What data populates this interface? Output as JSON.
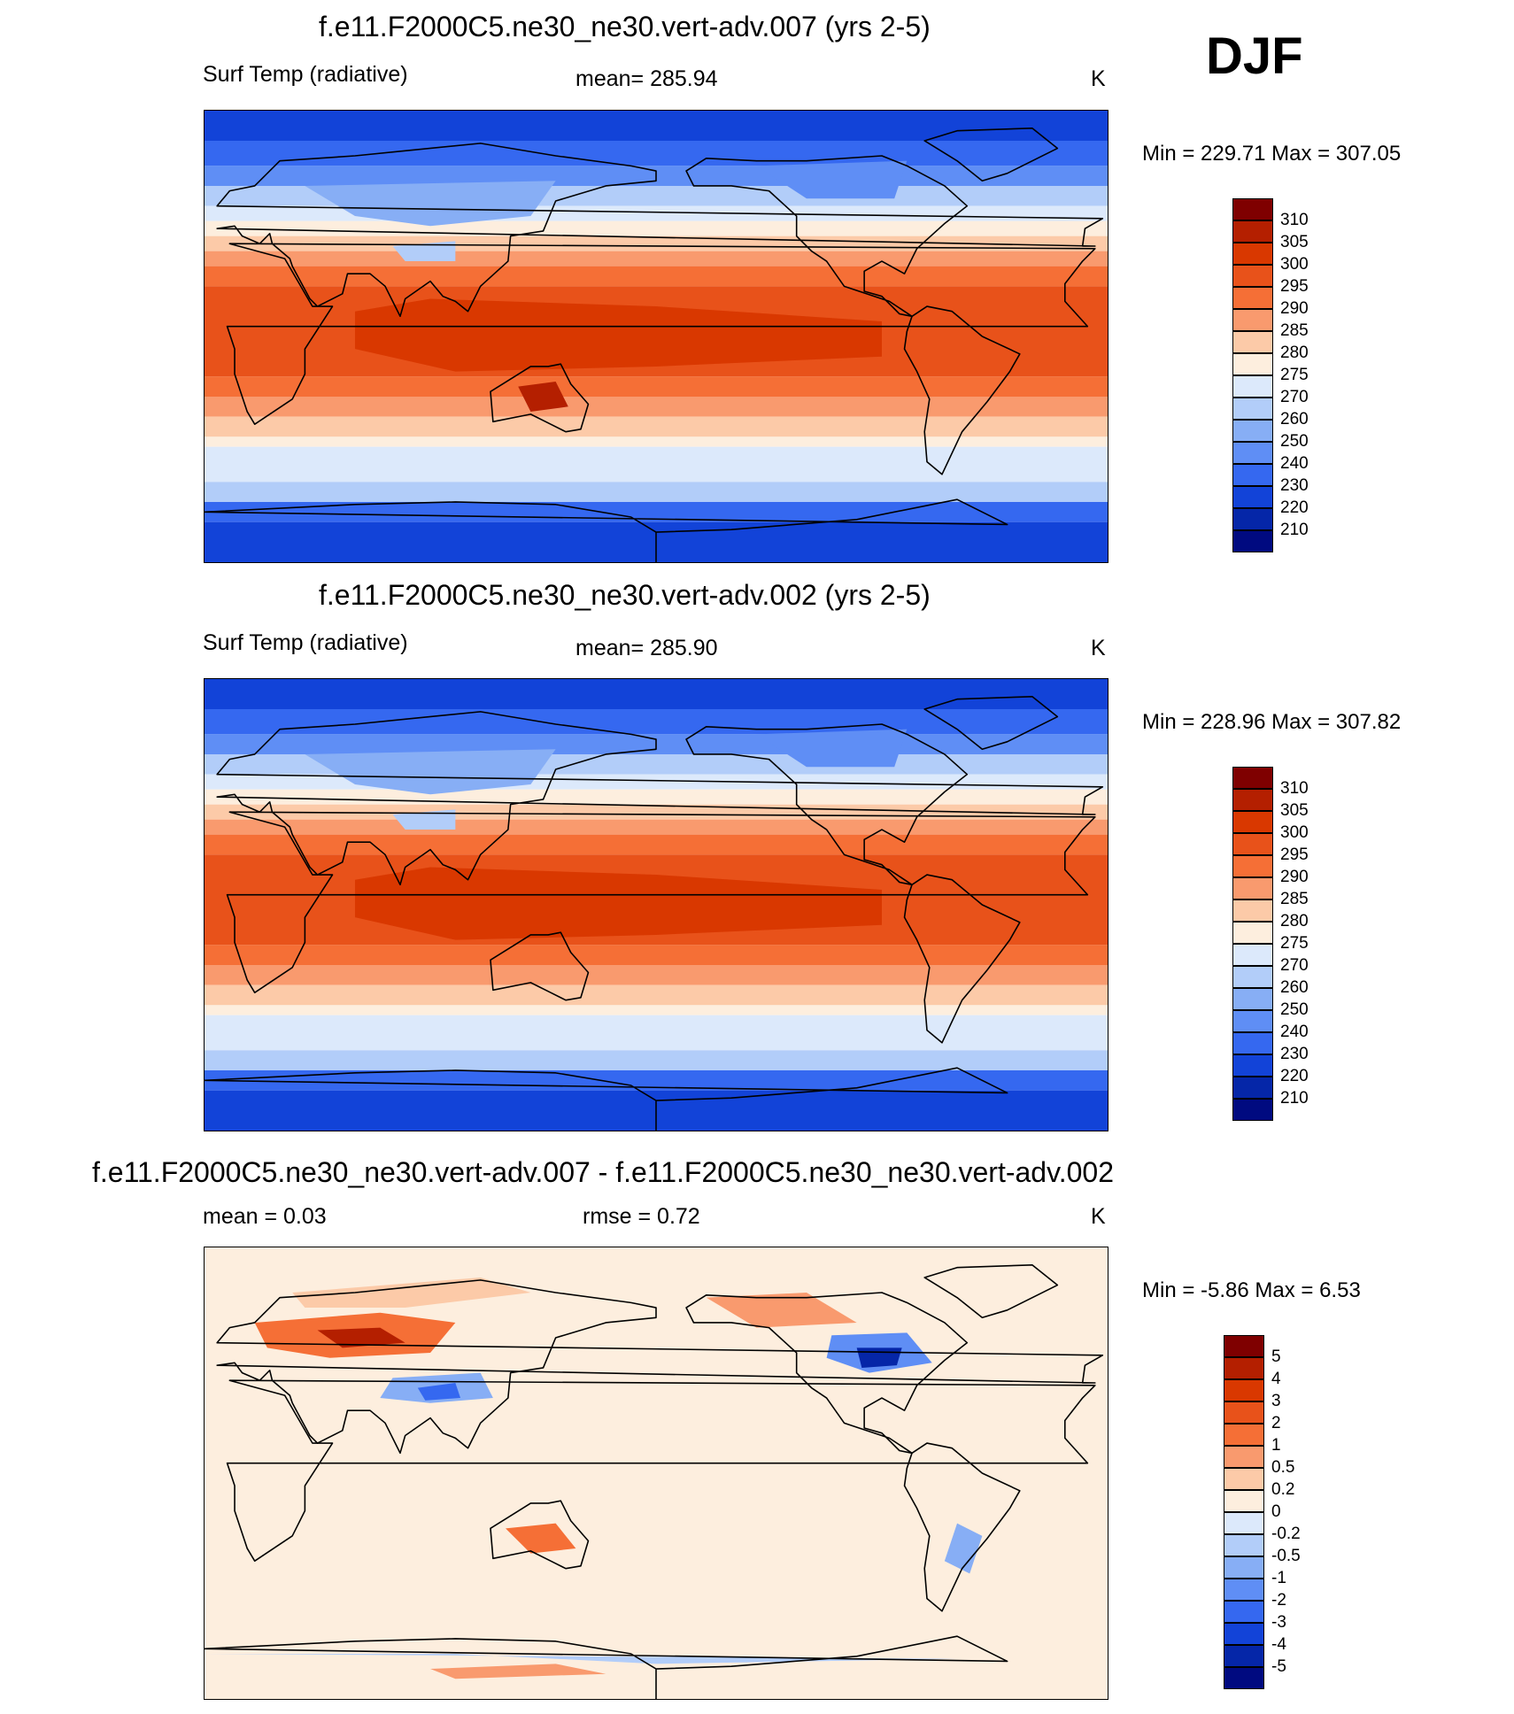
{
  "season": "DJF",
  "panels": [
    {
      "title": "f.e11.F2000C5.ne30_ne30.vert-adv.007 (yrs 2-5)",
      "left_label": "Surf Temp (radiative)",
      "center_label": "mean= 285.94",
      "units": "K",
      "minmax": "Min = 229.71 Max = 307.05",
      "variant": "abs1"
    },
    {
      "title": "f.e11.F2000C5.ne30_ne30.vert-adv.002 (yrs 2-5)",
      "left_label": "Surf Temp (radiative)",
      "center_label": "mean= 285.90",
      "units": "K",
      "minmax": "Min = 228.96 Max = 307.82",
      "variant": "abs2"
    },
    {
      "title": "f.e11.F2000C5.ne30_ne30.vert-adv.007 - f.e11.F2000C5.ne30_ne30.vert-adv.002",
      "left_label": "mean =   0.03",
      "center_label": "rmse =   0.72",
      "units": "K",
      "minmax": "Min =  -5.86 Max =   6.53",
      "variant": "diff"
    }
  ],
  "colorbars": {
    "abs": {
      "labels": [
        "310",
        "305",
        "300",
        "295",
        "290",
        "285",
        "280",
        "275",
        "270",
        "260",
        "250",
        "240",
        "230",
        "220",
        "210"
      ],
      "colors": [
        "#7f0000",
        "#b41f00",
        "#d93800",
        "#e8521a",
        "#f56f36",
        "#f99a6e",
        "#fccaa8",
        "#fdeede",
        "#dce9fb",
        "#b2cdf9",
        "#87aef5",
        "#5f8ef5",
        "#3568f0",
        "#1243d8",
        "#0526a8",
        "#000a80"
      ]
    },
    "diff": {
      "labels": [
        "5",
        "4",
        "3",
        "2",
        "1",
        "0.5",
        "0.2",
        "0",
        "-0.2",
        "-0.5",
        "-1",
        "-2",
        "-3",
        "-4",
        "-5"
      ],
      "colors": [
        "#7f0000",
        "#b41f00",
        "#d93800",
        "#e8521a",
        "#f56f36",
        "#f99a6e",
        "#fccaa8",
        "#fdeede",
        "#dce9fb",
        "#b2cdf9",
        "#87aef5",
        "#5f8ef5",
        "#3568f0",
        "#1243d8",
        "#0526a8",
        "#000a80"
      ]
    }
  }
}
